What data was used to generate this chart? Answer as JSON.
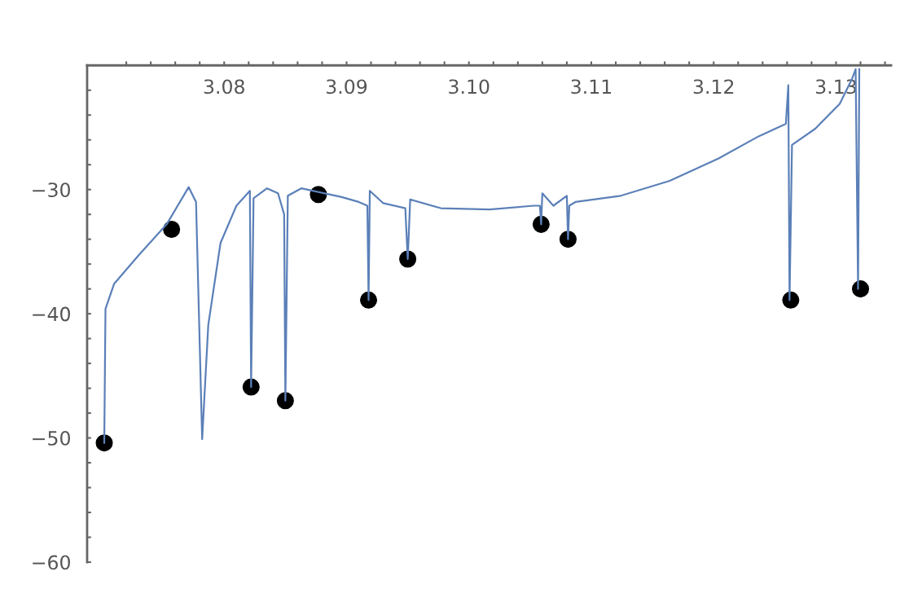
{
  "chart_data": {
    "type": "line",
    "xlim": [
      3.0688,
      3.1345
    ],
    "ylim": [
      -60,
      -20
    ],
    "xticks": [
      {
        "value": 3.072,
        "label": null
      },
      {
        "value": 3.074,
        "label": null
      },
      {
        "value": 3.076,
        "label": null
      },
      {
        "value": 3.078,
        "label": null
      },
      {
        "value": 3.08,
        "label": "3.08"
      },
      {
        "value": 3.082,
        "label": null
      },
      {
        "value": 3.084,
        "label": null
      },
      {
        "value": 3.086,
        "label": null
      },
      {
        "value": 3.088,
        "label": null
      },
      {
        "value": 3.09,
        "label": "3.09"
      },
      {
        "value": 3.092,
        "label": null
      },
      {
        "value": 3.094,
        "label": null
      },
      {
        "value": 3.096,
        "label": null
      },
      {
        "value": 3.098,
        "label": null
      },
      {
        "value": 3.1,
        "label": "3.10"
      },
      {
        "value": 3.102,
        "label": null
      },
      {
        "value": 3.104,
        "label": null
      },
      {
        "value": 3.106,
        "label": null
      },
      {
        "value": 3.108,
        "label": null
      },
      {
        "value": 3.11,
        "label": "3.11"
      },
      {
        "value": 3.112,
        "label": null
      },
      {
        "value": 3.114,
        "label": null
      },
      {
        "value": 3.116,
        "label": null
      },
      {
        "value": 3.118,
        "label": null
      },
      {
        "value": 3.12,
        "label": "3.12"
      },
      {
        "value": 3.122,
        "label": null
      },
      {
        "value": 3.124,
        "label": null
      },
      {
        "value": 3.126,
        "label": null
      },
      {
        "value": 3.128,
        "label": null
      },
      {
        "value": 3.13,
        "label": "3.13"
      },
      {
        "value": 3.132,
        "label": null
      },
      {
        "value": 3.134,
        "label": null
      }
    ],
    "yticks": [
      {
        "value": -60,
        "label": "−60"
      },
      {
        "value": -58,
        "label": null
      },
      {
        "value": -56,
        "label": null
      },
      {
        "value": -54,
        "label": null
      },
      {
        "value": -52,
        "label": null
      },
      {
        "value": -50,
        "label": "−50"
      },
      {
        "value": -48,
        "label": null
      },
      {
        "value": -46,
        "label": null
      },
      {
        "value": -44,
        "label": null
      },
      {
        "value": -42,
        "label": null
      },
      {
        "value": -40,
        "label": "−40"
      },
      {
        "value": -38,
        "label": null
      },
      {
        "value": -36,
        "label": null
      },
      {
        "value": -34,
        "label": null
      },
      {
        "value": -32,
        "label": null
      },
      {
        "value": -30,
        "label": "−30"
      },
      {
        "value": -28,
        "label": null
      },
      {
        "value": -26,
        "label": null
      },
      {
        "value": -24,
        "label": null
      },
      {
        "value": -22,
        "label": null
      }
    ],
    "grid": false,
    "series": [
      {
        "color": "#5b80b8",
        "marker": "none",
        "line_style": "solid",
        "x": [
          3.0702,
          3.0703,
          3.071,
          3.073,
          3.0753,
          3.0771,
          3.0777,
          3.0782,
          3.0787,
          3.0797,
          3.081,
          3.0821,
          3.0822,
          3.0824,
          3.0835,
          3.0844,
          3.0849,
          3.085,
          3.0852,
          3.0863,
          3.0896,
          3.091,
          3.0917,
          3.0918,
          3.0919,
          3.093,
          3.0948,
          3.095,
          3.0952,
          3.0977,
          3.1017,
          3.1053,
          3.1058,
          3.1059,
          3.106,
          3.1069,
          3.108,
          3.1081,
          3.1082,
          3.1087,
          3.1124,
          3.1164,
          3.1204,
          3.1237,
          3.1259,
          3.1261,
          3.1262,
          3.1264,
          3.1283,
          3.1303,
          3.1313,
          3.1316,
          3.1318,
          3.1319
        ],
        "values": [
          -50.4,
          -39.6,
          -37.6,
          -35.3,
          -32.8,
          -29.8,
          -31.0,
          -50.1,
          -40.9,
          -34.3,
          -31.3,
          -30.1,
          -45.9,
          -30.7,
          -29.9,
          -30.3,
          -32.0,
          -47.0,
          -30.5,
          -29.9,
          -30.6,
          -31.0,
          -31.3,
          -38.9,
          -30.1,
          -31.1,
          -31.5,
          -35.6,
          -30.8,
          -31.5,
          -31.6,
          -31.3,
          -31.3,
          -32.8,
          -30.3,
          -31.3,
          -30.5,
          -34.0,
          -31.3,
          -31.0,
          -30.5,
          -29.3,
          -27.5,
          -25.7,
          -24.7,
          -21.6,
          -38.9,
          -26.4,
          -25.1,
          -23.1,
          -21.1,
          -20.3,
          -38.0,
          -20.3
        ]
      },
      {
        "type": "scatter",
        "color": "#000000",
        "marker": "circle",
        "x": [
          3.0702,
          3.0757,
          3.0822,
          3.085,
          3.0877,
          3.0918,
          3.095,
          3.1059,
          3.1081,
          3.1263,
          3.132
        ],
        "values": [
          -50.4,
          -33.2,
          -45.9,
          -47.0,
          -30.4,
          -38.9,
          -35.6,
          -32.8,
          -34.0,
          -38.9,
          -38.0
        ]
      }
    ]
  }
}
